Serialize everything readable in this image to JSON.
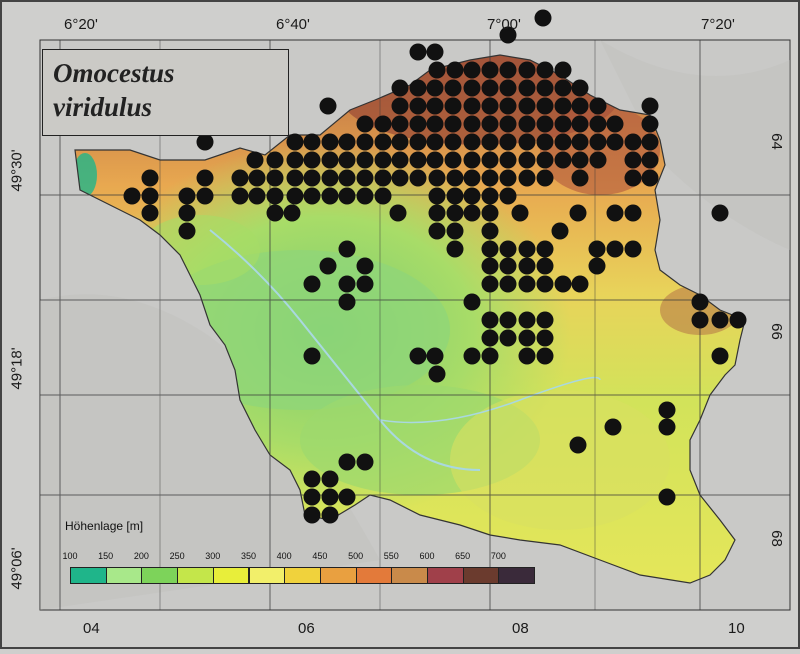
{
  "title": {
    "line1": "Omocestus",
    "line2": "viridulus"
  },
  "coords": {
    "top": [
      "6°20'",
      "6°40'",
      "7°00'",
      "7°20'"
    ],
    "left": [
      "49°30'",
      "49°18'",
      "49°06'"
    ],
    "right": [
      "64",
      "66",
      "68"
    ],
    "bottom": [
      "04",
      "06",
      "08",
      "10"
    ]
  },
  "legend": {
    "title": "Höhenlage [m]",
    "ticks": [
      "100",
      "150",
      "200",
      "250",
      "300",
      "350",
      "400",
      "450",
      "500",
      "550",
      "600",
      "650",
      "700"
    ],
    "colors": [
      "#1fb58a",
      "#a8e88a",
      "#7dd35a",
      "#c4e64a",
      "#e8ee3a",
      "#f2ef6a",
      "#f0d23c",
      "#e9a040",
      "#e37a3a",
      "#c98a4a",
      "#a0404a",
      "#6b3b2e",
      "#3a2a3a"
    ]
  },
  "map_colors": {
    "lowland": "#8fd67a",
    "midland": "#d8e65a",
    "upland": "#e8c85a",
    "highland": "#c97a4a",
    "peaks": "#8a3a2e",
    "water": "#a9d8e0",
    "outside": "#c9c9c7"
  },
  "occurrence": {
    "marker_color": "#111111",
    "n_records": 303
  }
}
